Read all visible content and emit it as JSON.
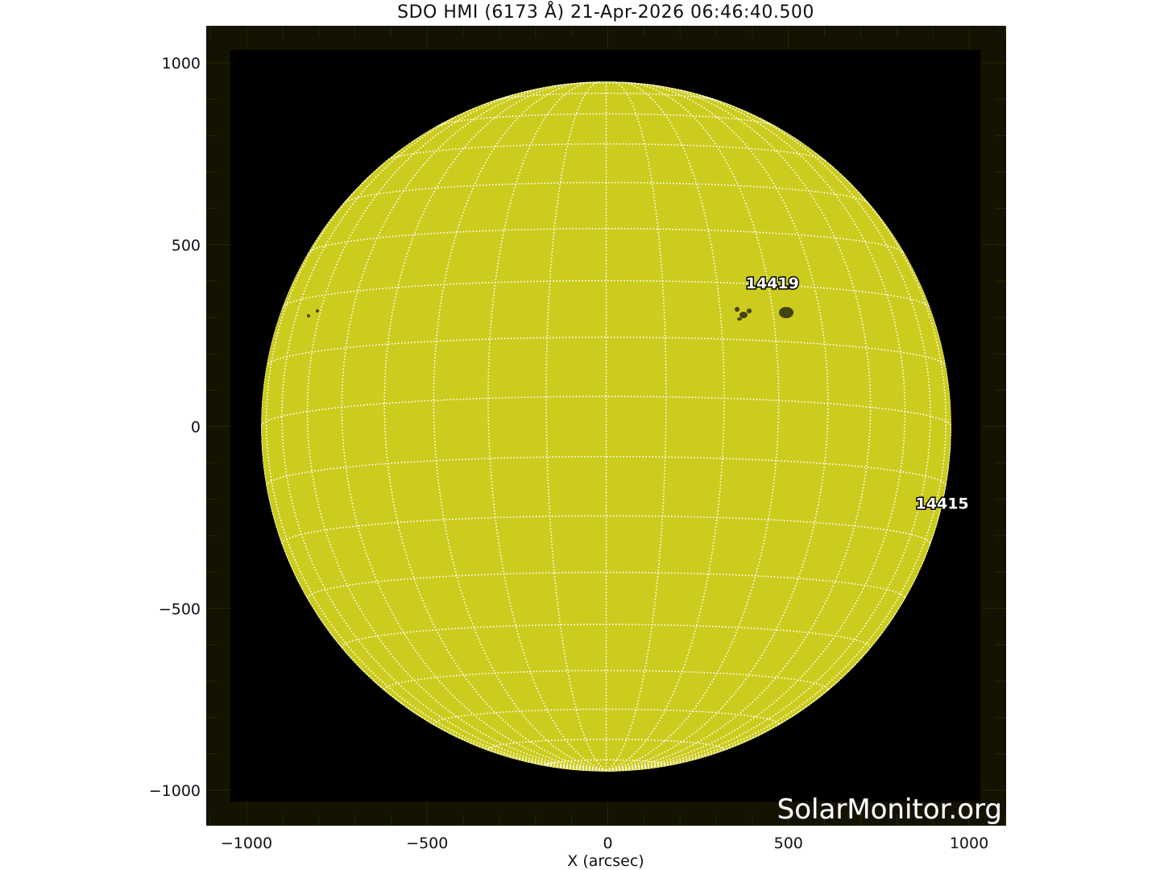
{
  "chart_data": {
    "type": "image",
    "title": "SDO HMI (6173 Å) 21-Apr-2026 06:46:40.500",
    "xlabel": "X (arcsec)",
    "ylabel": "",
    "xlim": [
      -1110,
      1100
    ],
    "ylim": [
      -1100,
      1100
    ],
    "xticks": [
      -1000,
      -500,
      0,
      500,
      1000
    ],
    "xtick_labels": [
      "−1000",
      "−500",
      "0",
      "500",
      "1000"
    ],
    "yticks": [
      1000,
      500,
      0,
      -500,
      -1000
    ],
    "ytick_labels": [
      "1000",
      "500",
      "0",
      "−500",
      "−1000"
    ],
    "solar_radius_arcsec": 955,
    "grid_spacing_deg": 10,
    "grid": true,
    "colors": {
      "disk": "#cccc1e",
      "background": "#000000",
      "frame": "#141200",
      "grid": "#ffffff"
    },
    "regions": [
      {
        "label": "14419",
        "x": 460,
        "y": 395
      },
      {
        "label": "14415",
        "x": 930,
        "y": -210
      }
    ],
    "watermark": "SolarMonitor.org"
  }
}
